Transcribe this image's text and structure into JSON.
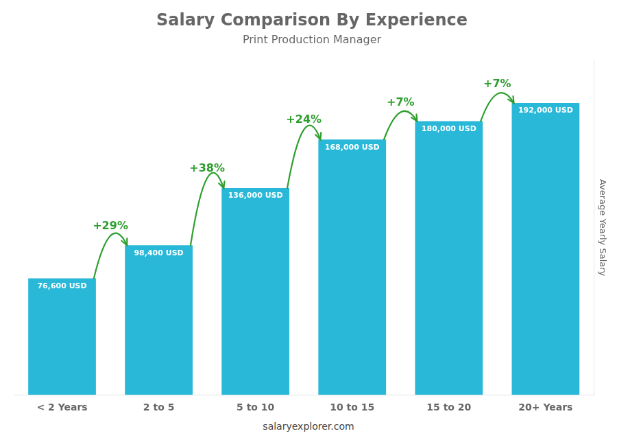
{
  "chart_data": {
    "type": "bar",
    "title": "Salary Comparison By Experience",
    "subtitle": "Print Production Manager",
    "ylabel": "Average Yearly Salary",
    "caption": "salaryexplorer.com",
    "categories": [
      "< 2 Years",
      "2 to 5",
      "5 to 10",
      "10 to 15",
      "15 to 20",
      "20+ Years"
    ],
    "values": [
      76600,
      98400,
      136000,
      168000,
      180000,
      192000
    ],
    "value_labels": [
      "76,600 USD",
      "98,400 USD",
      "136,000 USD",
      "168,000 USD",
      "180,000 USD",
      "192,000 USD"
    ],
    "data_labels": true,
    "annotations": [
      "+29%",
      "+38%",
      "+24%",
      "+7%",
      "+7%"
    ],
    "color": "#29b8d8",
    "ylim": [
      0,
      220000
    ],
    "grid": false,
    "tick_labels": "x"
  }
}
